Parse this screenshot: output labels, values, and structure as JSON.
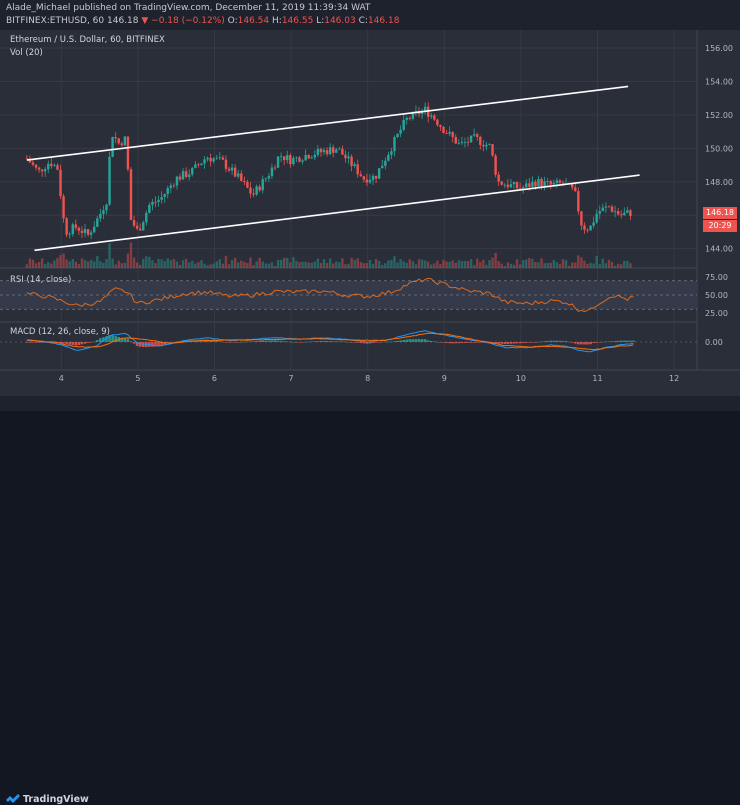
{
  "header": {
    "published_line": "Alade_Michael published on TradingView.com, December 11, 2019 11:39:34 WAT",
    "symbol": "BITFINEX:ETHUSD, 60",
    "last": "146.18",
    "change": "▼ −0.18 (−0.12%)",
    "o_label": "O:",
    "o_value": "146.54",
    "h_label": "H:",
    "h_value": "146.55",
    "l_label": "L:",
    "l_value": "146.03",
    "c_label": "C:",
    "c_value": "146.18"
  },
  "chart_title": "Ethereum / U.S. Dollar, 60, BITFINEX",
  "volume_label": "Vol (20)",
  "rsi_label": "RSI (14, close)",
  "macd_label": "MACD (12, 26, close, 9)",
  "last_price_label": "146.18",
  "countdown_label": "20:29",
  "footer_brand": "TradingView",
  "colors": {
    "up": "#26a69a",
    "down": "#ef5350",
    "channel": "#ffffff",
    "rsi": "#e0691a",
    "macd": "#2196f3",
    "signal": "#ff6d00"
  },
  "chart_data": {
    "type": "line",
    "title": "Ethereum / U.S. Dollar, 60, BITFINEX",
    "x_ticks": [
      "4",
      "5",
      "6",
      "7",
      "8",
      "9",
      "10",
      "11",
      "12"
    ],
    "y_ticks": [
      "156.00",
      "154.00",
      "152.00",
      "150.00",
      "148.00",
      "146.00",
      "144.00"
    ],
    "ylim": [
      143.2,
      156.6
    ],
    "rsi_ticks": [
      "75.00",
      "50.00",
      "25.00"
    ],
    "rsi_lim": [
      15,
      85
    ],
    "macd_ticks": [
      "0.00"
    ],
    "series": [
      {
        "name": "ETHUSD",
        "x": [
          3.55,
          3.7,
          3.85,
          3.95,
          4.05,
          4.2,
          4.35,
          4.5,
          4.6,
          4.65,
          4.75,
          4.85,
          4.9,
          5.0,
          5.15,
          5.3,
          5.5,
          5.7,
          5.9,
          6.1,
          6.3,
          6.5,
          6.7,
          6.85,
          7.0,
          7.2,
          7.4,
          7.6,
          7.8,
          7.95,
          8.1,
          8.3,
          8.5,
          8.65,
          8.75,
          8.85,
          9.0,
          9.2,
          9.4,
          9.6,
          9.7,
          9.85,
          10.0,
          10.2,
          10.4,
          10.55,
          10.7,
          10.8,
          10.9,
          11.0,
          11.15,
          11.3,
          11.45
        ],
        "values": [
          149.4,
          148.6,
          149.2,
          148.8,
          145.0,
          145.3,
          144.8,
          146.0,
          147.0,
          151.0,
          150.3,
          150.6,
          145.8,
          145.0,
          146.6,
          147.0,
          148.2,
          148.6,
          149.5,
          149.2,
          148.3,
          147.2,
          148.4,
          149.6,
          149.3,
          149.6,
          149.8,
          150.0,
          149.0,
          148.2,
          148.3,
          150.0,
          151.7,
          152.1,
          152.3,
          151.9,
          151.1,
          150.2,
          150.6,
          150.1,
          148.0,
          147.8,
          147.6,
          148.0,
          147.8,
          147.9,
          147.4,
          145.3,
          145.2,
          146.2,
          146.5,
          146.0,
          146.18
        ]
      },
      {
        "name": "RSI",
        "x": [
          3.55,
          3.8,
          4.0,
          4.2,
          4.5,
          4.7,
          4.85,
          5.0,
          5.3,
          5.6,
          5.9,
          6.2,
          6.5,
          6.8,
          7.1,
          7.4,
          7.7,
          8.0,
          8.3,
          8.55,
          8.75,
          9.0,
          9.3,
          9.6,
          9.8,
          10.1,
          10.4,
          10.6,
          10.75,
          10.9,
          11.0,
          11.2,
          11.4,
          11.5
        ],
        "values": [
          52,
          48,
          42,
          35,
          40,
          58,
          55,
          38,
          44,
          52,
          54,
          48,
          50,
          55,
          54,
          56,
          50,
          48,
          54,
          66,
          72,
          65,
          56,
          52,
          40,
          38,
          42,
          40,
          30,
          28,
          38,
          50,
          44,
          48
        ]
      },
      {
        "name": "MACD",
        "x": [
          3.55,
          3.8,
          4.0,
          4.2,
          4.45,
          4.65,
          4.85,
          5.0,
          5.3,
          5.6,
          5.9,
          6.2,
          6.5,
          6.8,
          7.1,
          7.4,
          7.7,
          8.0,
          8.3,
          8.55,
          8.75,
          9.0,
          9.3,
          9.6,
          9.8,
          10.1,
          10.4,
          10.6,
          10.75,
          10.9,
          11.1,
          11.3,
          11.5
        ],
        "values": [
          0.1,
          0.0,
          -0.2,
          -0.6,
          -0.3,
          0.5,
          0.6,
          -0.1,
          -0.3,
          0.1,
          0.3,
          0.1,
          0.2,
          0.3,
          0.2,
          0.3,
          0.2,
          0.0,
          0.2,
          0.6,
          0.8,
          0.5,
          0.2,
          -0.1,
          -0.4,
          -0.4,
          -0.2,
          -0.3,
          -0.6,
          -0.7,
          -0.4,
          -0.2,
          -0.1
        ]
      },
      {
        "name": "Signal",
        "x": [
          3.55,
          3.9,
          4.2,
          4.5,
          4.8,
          5.1,
          5.4,
          5.8,
          6.2,
          6.6,
          7.0,
          7.4,
          7.8,
          8.2,
          8.5,
          8.8,
          9.1,
          9.4,
          9.8,
          10.1,
          10.4,
          10.7,
          10.95,
          11.2,
          11.5
        ],
        "values": [
          0.15,
          0.0,
          -0.35,
          -0.35,
          0.3,
          0.2,
          -0.1,
          0.1,
          0.15,
          0.15,
          0.22,
          0.22,
          0.15,
          0.1,
          0.35,
          0.65,
          0.5,
          0.15,
          -0.25,
          -0.35,
          -0.3,
          -0.4,
          -0.55,
          -0.35,
          -0.2
        ]
      }
    ],
    "channel_upper": {
      "x": [
        3.55,
        11.4
      ],
      "y": [
        149.3,
        153.7
      ]
    },
    "channel_lower": {
      "x": [
        3.65,
        11.55
      ],
      "y": [
        143.9,
        148.4
      ]
    }
  }
}
